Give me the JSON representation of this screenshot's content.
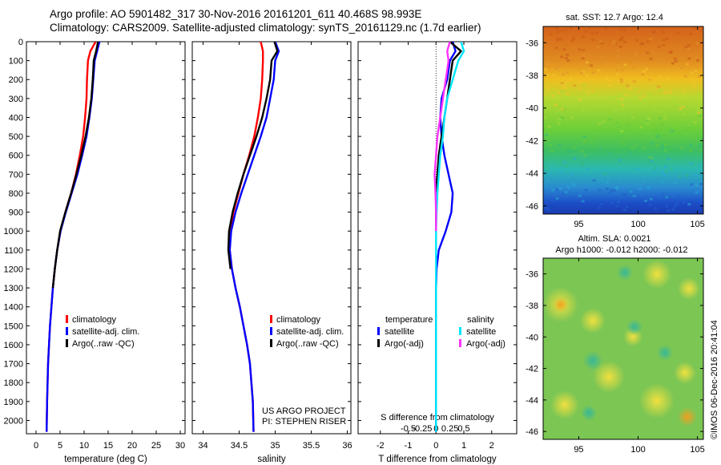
{
  "header": {
    "line1": "Argo profile: AO 5901482_317 30-Nov-2016 20161201_611 40.468S 98.993E",
    "line2": "Climatology: CARS2009. Satellite-adjusted climatology: synTS_20161129.nc (1.7d earlier)"
  },
  "credits": {
    "line1": "US ARGO PROJECT",
    "line2": "PI: STEPHEN RISER"
  },
  "imos_stamp": "©IMOS 06-Dec-2016 20:41:04",
  "colors": {
    "climatology": "#ff0000",
    "satellite_adj": "#0000ff",
    "argo": "#000000",
    "temp_satellite": "#0000ff",
    "temp_argo": "#000000",
    "sal_satellite": "#00e5ff",
    "sal_argo": "#ff33ff"
  },
  "chart_data": [
    {
      "id": "temperature",
      "type": "line",
      "xlabel": "temperature (deg C)",
      "xlim": [
        -2,
        31
      ],
      "xticks": [
        0,
        5,
        10,
        15,
        20,
        25,
        30
      ],
      "xticklabels": [
        "0",
        "5",
        "10",
        "15",
        "20",
        "25",
        "30"
      ],
      "ylim": [
        0,
        2070
      ],
      "yticks": [
        0,
        100,
        200,
        300,
        400,
        500,
        600,
        700,
        800,
        900,
        1000,
        1100,
        1200,
        1300,
        1400,
        1500,
        1600,
        1700,
        1800,
        1900,
        2000
      ],
      "legend": [
        "climatology",
        "satellite-adj. clim.",
        "Argo(..raw -QC)"
      ],
      "series": [
        {
          "name": "climatology",
          "color_key": "climatology",
          "x": [
            12.4,
            11.3,
            10.8,
            10.6,
            10.5,
            10.2,
            9.8,
            9.1,
            8.3,
            7.3,
            6.1,
            5.1,
            4.4,
            3.9,
            3.5,
            3.2,
            2.9,
            2.7,
            2.5,
            2.4,
            2.3,
            2.2
          ],
          "y": [
            0,
            50,
            100,
            200,
            300,
            400,
            500,
            600,
            700,
            800,
            900,
            1000,
            1100,
            1200,
            1300,
            1400,
            1500,
            1600,
            1700,
            1800,
            1900,
            2060
          ]
        },
        {
          "name": "satellite-adj. clim.",
          "color_key": "satellite_adj",
          "x": [
            13.2,
            12.7,
            12.2,
            11.9,
            11.6,
            11.1,
            10.5,
            9.6,
            8.6,
            7.4,
            6.2,
            5.1,
            4.4,
            3.9,
            3.5,
            3.2,
            2.9,
            2.7,
            2.5,
            2.4,
            2.3,
            2.2
          ],
          "y": [
            0,
            50,
            100,
            200,
            300,
            400,
            500,
            600,
            700,
            800,
            900,
            1000,
            1100,
            1200,
            1300,
            1400,
            1500,
            1600,
            1700,
            1800,
            1900,
            2060
          ]
        },
        {
          "name": "Argo(..raw -QC)",
          "color_key": "argo",
          "x": [
            12.9,
            12.5,
            12.0,
            11.8,
            11.5,
            11.0,
            10.3,
            9.4,
            8.4,
            7.3,
            6.1,
            5.0,
            4.4,
            3.9,
            3.5
          ],
          "y": [
            0,
            50,
            100,
            200,
            300,
            400,
            500,
            600,
            700,
            800,
            900,
            1000,
            1100,
            1200,
            1300
          ]
        }
      ]
    },
    {
      "id": "salinity",
      "type": "line",
      "xlabel": "salinity",
      "xlim": [
        33.85,
        36.05
      ],
      "xticks": [
        34,
        34.5,
        35,
        35.5,
        36
      ],
      "xticklabels": [
        "34",
        "34.5",
        "35",
        "35.5",
        "36"
      ],
      "ylim": [
        0,
        2070
      ],
      "yticks": [
        0,
        100,
        200,
        300,
        400,
        500,
        600,
        700,
        800,
        900,
        1000,
        1100,
        1200,
        1300,
        1400,
        1500,
        1600,
        1700,
        1800,
        1900,
        2000
      ],
      "legend": [
        "climatology",
        "satellite-adj. clim.",
        "Argo(..raw -QC)"
      ],
      "series": [
        {
          "name": "climatology",
          "color_key": "climatology",
          "x": [
            34.8,
            34.83,
            34.83,
            34.82,
            34.8,
            34.76,
            34.71,
            34.64,
            34.56,
            34.49,
            34.42,
            34.38,
            34.37,
            34.4,
            34.45,
            34.51,
            34.56,
            34.61,
            34.65,
            34.67,
            34.69,
            34.7
          ],
          "y": [
            0,
            50,
            100,
            200,
            300,
            400,
            500,
            600,
            700,
            800,
            900,
            1000,
            1100,
            1200,
            1300,
            1400,
            1500,
            1600,
            1700,
            1800,
            1900,
            2060
          ]
        },
        {
          "name": "satellite-adj. clim.",
          "color_key": "satellite_adj",
          "x": [
            35.0,
            35.05,
            35.0,
            34.98,
            34.93,
            34.88,
            34.8,
            34.71,
            34.62,
            34.53,
            34.45,
            34.39,
            34.37,
            34.4,
            34.45,
            34.51,
            34.56,
            34.61,
            34.65,
            34.67,
            34.69,
            34.7
          ],
          "y": [
            0,
            50,
            100,
            200,
            300,
            400,
            500,
            600,
            700,
            800,
            900,
            1000,
            1100,
            1200,
            1300,
            1400,
            1500,
            1600,
            1700,
            1800,
            1900,
            2060
          ]
        },
        {
          "name": "Argo(..raw -QC)",
          "color_key": "argo",
          "x": [
            34.99,
            35.03,
            34.95,
            34.93,
            34.88,
            34.82,
            34.74,
            34.65,
            34.56,
            34.48,
            34.41,
            34.36,
            34.35,
            34.38
          ],
          "y": [
            0,
            50,
            100,
            200,
            300,
            400,
            500,
            600,
            700,
            800,
            900,
            1000,
            1100,
            1200
          ]
        }
      ]
    },
    {
      "id": "difference",
      "type": "line",
      "xlabel": "T difference from climatology",
      "xlabel_top": "S difference from climatology",
      "xlim": [
        -2.8,
        2.9
      ],
      "xticks": [
        -2,
        -1,
        0,
        1,
        2
      ],
      "xticklabels": [
        "-2",
        "-1",
        "0",
        "1",
        "2"
      ],
      "xticks_top": [
        -0.5,
        -0.25,
        0,
        0.25,
        0.5
      ],
      "xticklabels_top": [
        "-0.5",
        "-0.25",
        "0",
        "0.25",
        "0.5"
      ],
      "ylim": [
        0,
        2070
      ],
      "yticks": [
        0,
        100,
        200,
        300,
        400,
        500,
        600,
        700,
        800,
        900,
        1000,
        1100,
        1200,
        1300,
        1400,
        1500,
        1600,
        1700,
        1800,
        1900,
        2000
      ],
      "legend_groups": [
        {
          "title": "temperature",
          "items": [
            "satellite",
            "Argo(-adj)"
          ]
        },
        {
          "title": "salinity",
          "items": [
            "satellite",
            "Argo(-adj)"
          ]
        }
      ],
      "series": [
        {
          "name": "temperature satellite",
          "color_key": "temp_satellite",
          "x": [
            0.6,
            0.7,
            0.5,
            0.4,
            0.2,
            0.15,
            0.2,
            0.3,
            0.45,
            0.6,
            0.55,
            0.35,
            0.1,
            0.02,
            0.0,
            0.0,
            0.0,
            0.0,
            0.0,
            0.0,
            0.0,
            0.0
          ],
          "y": [
            0,
            50,
            100,
            200,
            300,
            400,
            500,
            600,
            700,
            800,
            900,
            1000,
            1100,
            1200,
            1300,
            1400,
            1500,
            1600,
            1700,
            1800,
            1900,
            2060
          ]
        },
        {
          "name": "temperature Argo(-adj)",
          "color_key": "temp_argo",
          "x": [
            0.5,
            0.9,
            0.6,
            0.5,
            0.4,
            0.3,
            0.2,
            0.1,
            0.05,
            0.0,
            0.0,
            0.0
          ],
          "y": [
            0,
            50,
            100,
            200,
            300,
            400,
            500,
            600,
            700,
            800,
            900,
            1000
          ]
        },
        {
          "name": "salinity satellite",
          "color_key": "sal_satellite",
          "x": [
            0.9,
            1.0,
            0.8,
            0.6,
            0.4,
            0.3,
            0.25,
            0.15,
            0.1,
            0.05,
            0.02,
            0.0,
            0.0,
            0.0,
            0.0,
            0.0,
            0.0,
            0.0,
            0.0,
            0.0,
            0.0,
            0.0
          ],
          "y": [
            0,
            50,
            100,
            200,
            300,
            400,
            500,
            600,
            700,
            800,
            900,
            1000,
            1100,
            1200,
            1300,
            1400,
            1500,
            1600,
            1700,
            1800,
            1900,
            2060
          ]
        },
        {
          "name": "salinity Argo(-adj)",
          "color_key": "sal_argo",
          "x": [
            0.5,
            0.4,
            0.45,
            0.35,
            0.25,
            0.15,
            0.05,
            0.0,
            -0.05,
            -0.02,
            0.0,
            0.0
          ],
          "y": [
            0,
            50,
            100,
            200,
            300,
            400,
            500,
            600,
            700,
            800,
            900,
            1000
          ]
        }
      ]
    },
    {
      "id": "sst_map",
      "type": "heatmap",
      "title": "sat. SST: 12.7 Argo: 12.4",
      "xticks": [
        95,
        100,
        105
      ],
      "xticklabels": [
        "95",
        "100",
        "105"
      ],
      "yticks": [
        -36,
        -38,
        -40,
        -42,
        -44,
        -46
      ],
      "yticklabels": [
        "-36",
        "-38",
        "-40",
        "-42",
        "-44",
        "-46"
      ],
      "xlim": [
        92,
        105.5
      ],
      "ylim": [
        -46.5,
        -35
      ],
      "bands": [
        {
          "lat": [
            -35,
            -37
          ],
          "color": "#d86a1a"
        },
        {
          "lat": [
            -37,
            -38.5
          ],
          "color": "#f0b020"
        },
        {
          "lat": [
            -38.5,
            -41
          ],
          "color": "#9ccf2e"
        },
        {
          "lat": [
            -41,
            -43
          ],
          "color": "#3fbf6a"
        },
        {
          "lat": [
            -43,
            -45
          ],
          "color": "#25b0c8"
        },
        {
          "lat": [
            -45,
            -46.5
          ],
          "color": "#1c4ec8"
        }
      ]
    },
    {
      "id": "sla_map",
      "type": "heatmap",
      "title": "Altim. SLA: 0.0021",
      "subtitle": "Argo h1000: -0.012 h2000: -0.012",
      "xticks": [
        95,
        100,
        105
      ],
      "xticklabels": [
        "95",
        "100",
        "105"
      ],
      "yticks": [
        -36,
        -38,
        -40,
        -42,
        -44,
        -46
      ],
      "yticklabels": [
        "-36",
        "-38",
        "-40",
        "-42",
        "-44",
        "-46"
      ],
      "xlim": [
        92,
        105.5
      ],
      "ylim": [
        -46.5,
        -35
      ]
    }
  ]
}
